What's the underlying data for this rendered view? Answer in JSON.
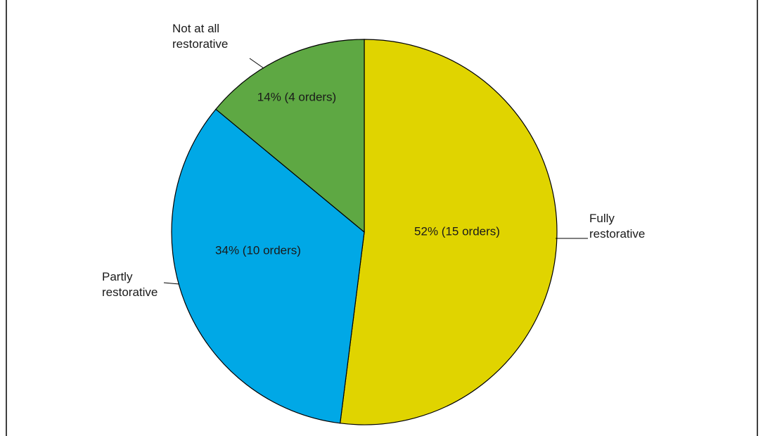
{
  "chart_data": {
    "type": "pie",
    "title": "",
    "slices": [
      {
        "category": "Fully restorative",
        "category_lines": [
          "Fully",
          "restorative"
        ],
        "percent": 52,
        "orders": 15,
        "data_label": "52% (15 orders)",
        "color": "#e0d400"
      },
      {
        "category": "Partly restorative",
        "category_lines": [
          "Partly",
          "restorative"
        ],
        "percent": 34,
        "orders": 10,
        "data_label": "34% (10 orders)",
        "color": "#00a8e6"
      },
      {
        "category": "Not at all restorative",
        "category_lines": [
          "Not at all",
          "restorative"
        ],
        "percent": 14,
        "orders": 4,
        "data_label": "14% (4 orders)",
        "color": "#5ea843"
      }
    ],
    "start": "12 o'clock",
    "direction": "clockwise",
    "legend": "none"
  }
}
